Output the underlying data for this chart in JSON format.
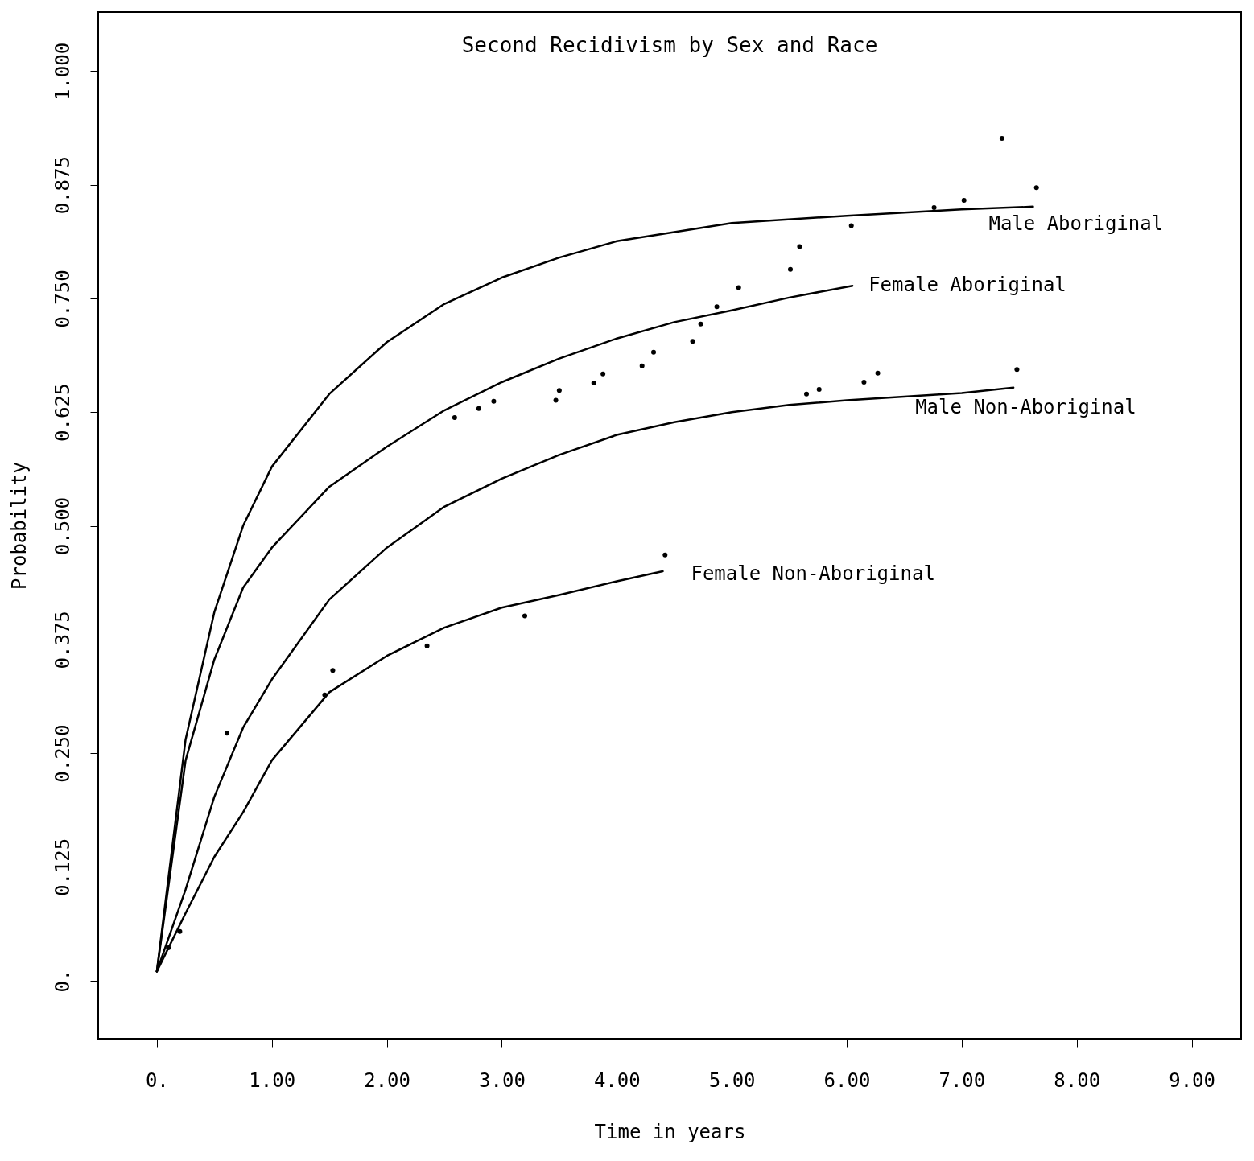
{
  "chart_data": {
    "type": "line",
    "title": "Second Recidivism by Sex and Race",
    "xlabel": "Time in years",
    "ylabel": "Probability",
    "xlim": [
      -0.51,
      9.43
    ],
    "ylim": [
      -0.064,
      1.065
    ],
    "xticks": [
      {
        "value": 0,
        "label": "0."
      },
      {
        "value": 1,
        "label": "1.00"
      },
      {
        "value": 2,
        "label": "2.00"
      },
      {
        "value": 3,
        "label": "3.00"
      },
      {
        "value": 4,
        "label": "4.00"
      },
      {
        "value": 5,
        "label": "5.00"
      },
      {
        "value": 6,
        "label": "6.00"
      },
      {
        "value": 7,
        "label": "7.00"
      },
      {
        "value": 8,
        "label": "8.00"
      },
      {
        "value": 9,
        "label": "9.00"
      }
    ],
    "yticks": [
      {
        "value": 0,
        "label": "0."
      },
      0.125,
      {
        "value": 0.25,
        "label": "0.250"
      },
      0.375,
      {
        "value": 0.5,
        "label": "0.500"
      },
      0.625,
      {
        "value": 0.75,
        "label": "0.750"
      },
      0.875,
      {
        "value": 1,
        "label": "1.000"
      }
    ],
    "grid": false,
    "line_style": "solid",
    "series": [
      {
        "name": "Male Aboriginal",
        "type": "line",
        "color": "#000000",
        "x": [
          0,
          0.25,
          0.5,
          0.75,
          1,
          1.5,
          2,
          2.5,
          3,
          3.5,
          4,
          4.5,
          5,
          6,
          7,
          7.62
        ],
        "values": [
          0.01,
          0.265,
          0.405,
          0.5,
          0.565,
          0.645,
          0.702,
          0.744,
          0.773,
          0.795,
          0.813,
          0.823,
          0.833,
          0.841,
          0.848,
          0.851
        ]
      },
      {
        "name": "Female Aboriginal",
        "type": "line",
        "color": "#000000",
        "x": [
          0,
          0.25,
          0.5,
          0.75,
          1,
          1.5,
          2,
          2.5,
          3,
          3.5,
          4,
          4.5,
          5,
          5.5,
          6.05
        ],
        "values": [
          0.01,
          0.242,
          0.353,
          0.432,
          0.476,
          0.543,
          0.587,
          0.627,
          0.658,
          0.684,
          0.706,
          0.724,
          0.737,
          0.751,
          0.764
        ]
      },
      {
        "name": "Male Non-Aboriginal",
        "type": "line",
        "color": "#000000",
        "x": [
          0,
          0.25,
          0.5,
          0.75,
          1,
          1.5,
          2,
          2.5,
          3,
          3.5,
          4,
          4.5,
          5,
          5.5,
          6,
          7,
          7.45
        ],
        "values": [
          0.01,
          0.1,
          0.202,
          0.278,
          0.331,
          0.419,
          0.476,
          0.521,
          0.552,
          0.578,
          0.6,
          0.614,
          0.625,
          0.633,
          0.638,
          0.646,
          0.652
        ]
      },
      {
        "name": "Female Non-Aboriginal",
        "type": "line",
        "color": "#000000",
        "x": [
          0,
          0.25,
          0.5,
          0.75,
          1,
          1.5,
          2,
          2.5,
          3,
          3.5,
          4,
          4.4
        ],
        "values": [
          0.01,
          0.074,
          0.136,
          0.185,
          0.242,
          0.317,
          0.357,
          0.388,
          0.41,
          0.424,
          0.439,
          0.45
        ]
      },
      {
        "type": "scatter",
        "color": "#000000",
        "x": [
          7.35,
          7.65,
          7.02,
          6.76,
          6.04,
          5.59,
          5.51,
          5.06,
          4.87,
          4.73,
          4.66,
          4.32,
          4.22,
          3.88,
          3.8,
          3.5,
          3.47,
          2.93,
          2.8,
          2.59,
          6.27,
          6.15,
          7.48,
          5.76,
          5.65,
          4.42,
          3.2,
          2.35,
          1.53,
          1.46,
          0.61,
          0.2,
          0.1
        ],
        "values": [
          0.926,
          0.872,
          0.858,
          0.85,
          0.83,
          0.807,
          0.782,
          0.762,
          0.741,
          0.722,
          0.703,
          0.691,
          0.676,
          0.667,
          0.657,
          0.649,
          0.638,
          0.637,
          0.629,
          0.619,
          0.668,
          0.658,
          0.672,
          0.65,
          0.645,
          0.468,
          0.401,
          0.368,
          0.341,
          0.314,
          0.272,
          0.054,
          0.036
        ]
      }
    ]
  }
}
